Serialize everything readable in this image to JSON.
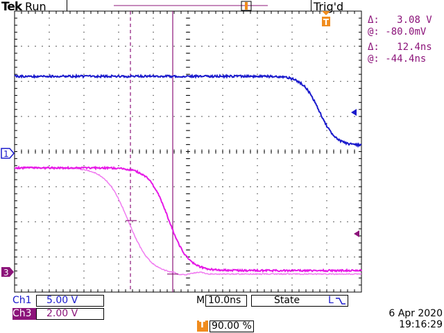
{
  "header": {
    "brand": "Tek",
    "status": "Run",
    "trigger_status": "Trig'd"
  },
  "cursor_readout": {
    "voltage": {
      "delta_symbol": "Δ:",
      "delta_value": "3.08 V",
      "at_symbol": "@:",
      "at_value": "-80.0mV"
    },
    "time": {
      "delta_symbol": "Δ:",
      "delta_value": "12.4ns",
      "at_symbol": "@:",
      "at_value": "-44.4ns"
    }
  },
  "channels": {
    "ch1": {
      "label": "Ch1",
      "scale": "5.00 V",
      "marker": "1",
      "color": "#1a1acc"
    },
    "ch3": {
      "label": "Ch3",
      "scale": "2.00 V",
      "marker": "3",
      "color": "#e619e6"
    }
  },
  "timebase": {
    "label": "M",
    "value": "10.0ns"
  },
  "trigger": {
    "mode": "State",
    "marker": "T",
    "position": "90.00 %",
    "color": "#f08c1e",
    "level_label": "L"
  },
  "date": "6 Apr 2020",
  "time": "19:16:29",
  "colors": {
    "cursor": "#8c147a",
    "grid": "#000000",
    "ch3_ref": "#f07af0"
  },
  "icons": {
    "trigger_marker": "trigger-T-icon",
    "ch1_marker": "ch1-marker-icon",
    "ch3_marker": "ch3-marker-icon",
    "slope": "falling-edge-icon",
    "ch1_level_arrow": "arrow-left-icon",
    "ch3_level_arrow": "arrow-left-icon"
  }
}
